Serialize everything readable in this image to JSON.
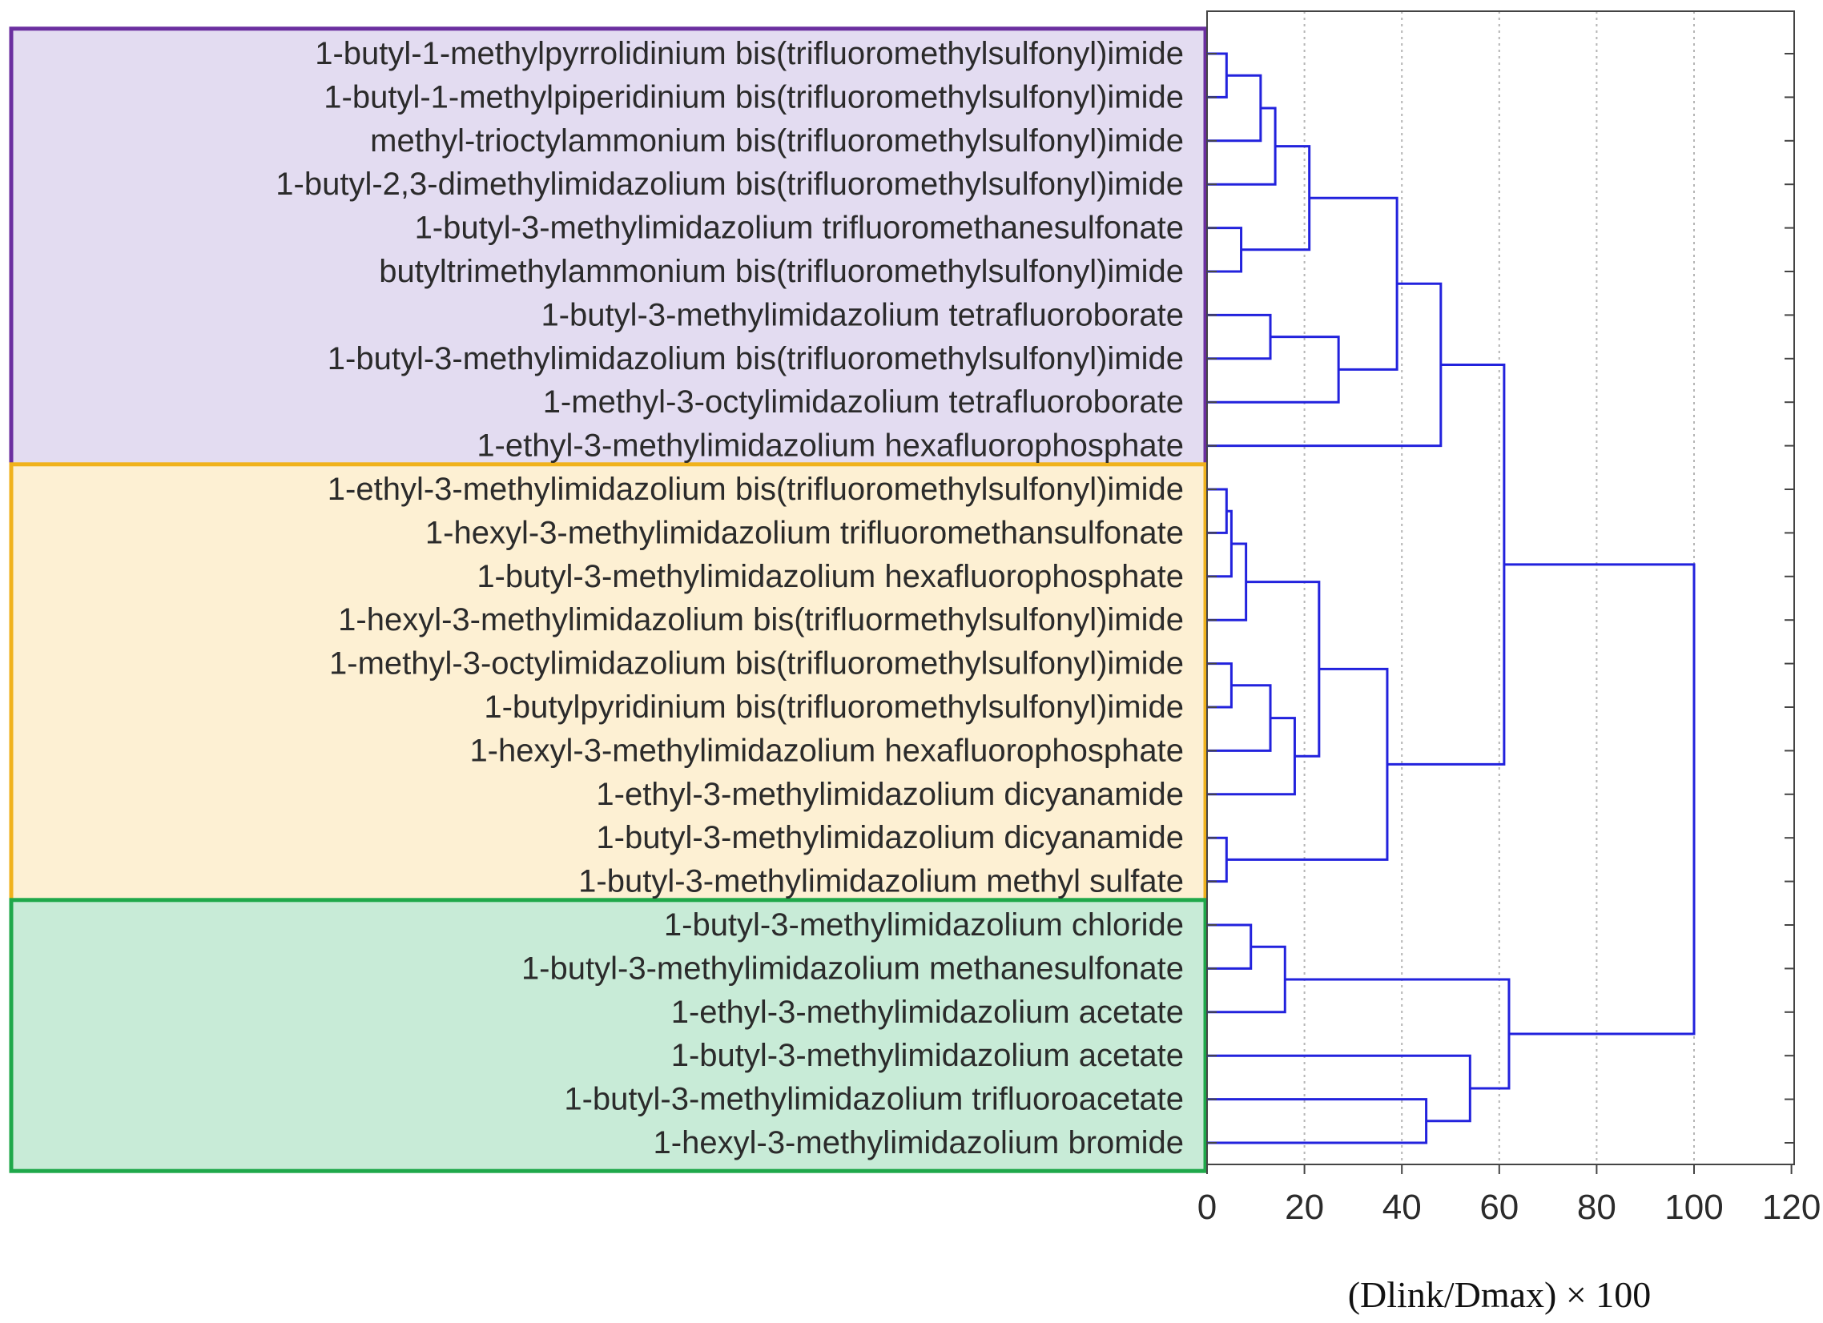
{
  "chart_data": {
    "type": "dendrogram",
    "orientation": "horizontal",
    "xlabel": "(Dlink/Dmax) × 100",
    "xlim": [
      0,
      120
    ],
    "xticks": [
      0,
      20,
      40,
      60,
      80,
      100,
      120
    ],
    "grid": "vertical dotted",
    "line_color": "#2222dd",
    "leaves": [
      "1-butyl-1-methylpyrrolidinium bis(trifluoromethylsulfonyl)imide",
      "1-butyl-1-methylpiperidinium bis(trifluoromethylsulfonyl)imide",
      "methyl-trioctylammonium bis(trifluoromethylsulfonyl)imide",
      "1-butyl-2,3-dimethylimidazolium bis(trifluoromethylsulfonyl)imide",
      "1-butyl-3-methylimidazolium trifluoromethanesulfonate",
      "butyltrimethylammonium bis(trifluoromethylsulfonyl)imide",
      "1-butyl-3-methylimidazolium tetrafluoroborate",
      "1-butyl-3-methylimidazolium bis(trifluoromethylsulfonyl)imide",
      "1-methyl-3-octylimidazolium tetrafluoroborate",
      "1-ethyl-3-methylimidazolium hexafluorophosphate",
      "1-ethyl-3-methylimidazolium bis(trifluoromethylsulfonyl)imide",
      "1-hexyl-3-methylimidazolium trifluoromethansulfonate",
      "1-butyl-3-methylimidazolium hexafluorophosphate",
      "1-hexyl-3-methylimidazolium bis(trifluormethylsulfonyl)imide",
      "1-methyl-3-octylimidazolium bis(trifluoromethylsulfonyl)imide",
      "1-butylpyridinium bis(trifluoromethylsulfonyl)imide",
      "1-hexyl-3-methylimidazolium hexafluorophosphate",
      "1-ethyl-3-methylimidazolium dicyanamide",
      "1-butyl-3-methylimidazolium dicyanamide",
      "1-butyl-3-methylimidazolium methyl sulfate",
      "1-butyl-3-methylimidazolium chloride",
      "1-butyl-3-methylimidazolium methanesulfonate",
      "1-ethyl-3-methylimidazolium acetate",
      "1-butyl-3-methylimidazolium acetate",
      "1-butyl-3-methylimidazolium trifluoroacetate",
      "1-hexyl-3-methylimidazolium bromide"
    ],
    "merges": [
      {
        "a": "L0",
        "b": "L1",
        "height": 4
      },
      {
        "a": "N0",
        "b": "L2",
        "height": 11
      },
      {
        "a": "N1",
        "b": "L3",
        "height": 14
      },
      {
        "a": "L4",
        "b": "L5",
        "height": 7
      },
      {
        "a": "N2",
        "b": "N3",
        "height": 21
      },
      {
        "a": "L6",
        "b": "L7",
        "height": 13
      },
      {
        "a": "N5",
        "b": "L8",
        "height": 27
      },
      {
        "a": "N4",
        "b": "N6",
        "height": 39
      },
      {
        "a": "N7",
        "b": "L9",
        "height": 48
      },
      {
        "a": "L10",
        "b": "L11",
        "height": 4
      },
      {
        "a": "N9",
        "b": "L12",
        "height": 5
      },
      {
        "a": "N10",
        "b": "L13",
        "height": 8
      },
      {
        "a": "L14",
        "b": "L15",
        "height": 5
      },
      {
        "a": "N12",
        "b": "L16",
        "height": 13
      },
      {
        "a": "N13",
        "b": "L17",
        "height": 18
      },
      {
        "a": "N11",
        "b": "N14",
        "height": 23
      },
      {
        "a": "L18",
        "b": "L19",
        "height": 4
      },
      {
        "a": "N15",
        "b": "N16",
        "height": 37
      },
      {
        "a": "N8",
        "b": "N17",
        "height": 61
      },
      {
        "a": "L20",
        "b": "L21",
        "height": 9
      },
      {
        "a": "N19",
        "b": "L22",
        "height": 16
      },
      {
        "a": "L24",
        "b": "L25",
        "height": 45
      },
      {
        "a": "L23",
        "b": "N21",
        "height": 54
      },
      {
        "a": "N20",
        "b": "N22",
        "height": 62
      },
      {
        "a": "N18",
        "b": "N23",
        "height": 100
      }
    ],
    "clusters": [
      {
        "name": "cluster-purple",
        "first_leaf": 0,
        "last_leaf": 9,
        "fill": "#e3dcf1",
        "border": "#6b2fa0"
      },
      {
        "name": "cluster-orange",
        "first_leaf": 10,
        "last_leaf": 19,
        "fill": "#fdf0d3",
        "border": "#f0b21c"
      },
      {
        "name": "cluster-green",
        "first_leaf": 20,
        "last_leaf": 25,
        "fill": "#c8ebd7",
        "border": "#1fa84a"
      }
    ]
  }
}
